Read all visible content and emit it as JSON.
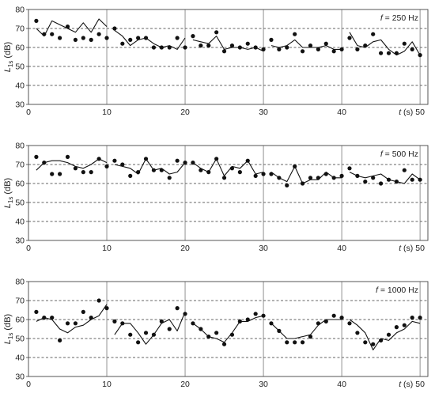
{
  "chart_data": [
    {
      "type": "line",
      "title": "f = 250 Hz",
      "title_prefix": "f",
      "title_suffix": " = 250 Hz",
      "ylabel": "L1s (dB)",
      "ylabel_main": "L",
      "ylabel_sub": "1s",
      "ylabel_unit": " (dB)",
      "xlabel": "t (s)",
      "x_ticks": [
        "0",
        "10",
        "20",
        "30",
        "40",
        "50"
      ],
      "y_ticks": [
        "30",
        "40",
        "50",
        "60",
        "70",
        "80"
      ],
      "xlim": [
        0,
        51
      ],
      "ylim": [
        30,
        80
      ],
      "grid": {
        "horizontal": "dashed",
        "vertical": "solid at 10, 20, 30, 40, 50"
      },
      "series": [
        {
          "kind": "measured points",
          "x": [
            1,
            2,
            3,
            4,
            5,
            6,
            7,
            8,
            9,
            10,
            11,
            12,
            13,
            14,
            15,
            16,
            17,
            18,
            19,
            20,
            21,
            22,
            23,
            24,
            25,
            26,
            27,
            28,
            29,
            30,
            31,
            32,
            33,
            34,
            35,
            36,
            37,
            38,
            39,
            40,
            41,
            42,
            43,
            44,
            45,
            46,
            47,
            48,
            49,
            50
          ],
          "y": [
            74,
            67,
            67,
            65,
            71,
            64,
            65,
            64,
            67,
            65,
            70,
            62,
            64,
            65,
            65,
            60,
            60,
            60,
            65,
            60,
            66,
            61,
            61,
            68,
            58,
            61,
            60,
            62,
            60,
            59,
            64,
            59,
            60,
            67,
            58,
            61,
            59,
            62,
            58,
            59,
            65,
            59,
            61,
            67,
            57,
            57,
            57,
            62,
            59,
            56
          ]
        },
        {
          "kind": "model line",
          "segments": [
            {
              "x": [
                1,
                2,
                3,
                4,
                5,
                6,
                7,
                8,
                9,
                10
              ],
              "y": [
                70,
                66,
                74,
                72,
                70,
                68,
                73,
                68,
                75,
                71
              ]
            },
            {
              "x": [
                11,
                12,
                13,
                14,
                15,
                16,
                17,
                18,
                19,
                20
              ],
              "y": [
                69,
                66,
                61,
                64,
                65,
                62,
                60,
                61,
                59,
                65
              ]
            },
            {
              "x": [
                21,
                22,
                23,
                24,
                25,
                26,
                27,
                28,
                29,
                30
              ],
              "y": [
                64,
                63,
                62,
                66,
                59,
                60,
                60,
                59,
                60,
                58
              ]
            },
            {
              "x": [
                31,
                32,
                33,
                34,
                35,
                36,
                37,
                38,
                39,
                40
              ],
              "y": [
                61,
                60,
                61,
                64,
                60,
                60,
                60,
                61,
                59,
                59
              ]
            },
            {
              "x": [
                41,
                42,
                43,
                44,
                45,
                46,
                47,
                48,
                49,
                50
              ],
              "y": [
                68,
                61,
                60,
                63,
                64,
                59,
                56,
                58,
                63,
                56
              ]
            }
          ]
        }
      ]
    },
    {
      "type": "line",
      "title": "f = 500 Hz",
      "title_prefix": "f",
      "title_suffix": " = 500 Hz",
      "ylabel": "L1s (dB)",
      "ylabel_main": "L",
      "ylabel_sub": "1s",
      "ylabel_unit": " (dB)",
      "xlabel": "t (s)",
      "x_ticks": [
        "0",
        "10",
        "20",
        "30",
        "40",
        "50"
      ],
      "y_ticks": [
        "30",
        "40",
        "50",
        "60",
        "70",
        "80"
      ],
      "xlim": [
        0,
        51
      ],
      "ylim": [
        30,
        80
      ],
      "grid": {
        "horizontal": "dashed",
        "vertical": "solid at 10, 20, 30, 40, 50"
      },
      "series": [
        {
          "kind": "measured points",
          "x": [
            1,
            2,
            3,
            4,
            5,
            6,
            7,
            8,
            9,
            10,
            11,
            12,
            13,
            14,
            15,
            16,
            17,
            18,
            19,
            20,
            21,
            22,
            23,
            24,
            25,
            26,
            27,
            28,
            29,
            30,
            31,
            32,
            33,
            34,
            35,
            36,
            37,
            38,
            39,
            40,
            41,
            42,
            43,
            44,
            45,
            46,
            47,
            48,
            49,
            50
          ],
          "y": [
            74,
            71,
            65,
            65,
            74,
            68,
            66,
            66,
            73,
            69,
            72,
            70,
            64,
            66,
            73,
            67,
            67,
            63,
            72,
            71,
            71,
            67,
            66,
            73,
            63,
            68,
            66,
            72,
            64,
            65,
            65,
            63,
            59,
            69,
            60,
            63,
            63,
            65,
            63,
            64,
            68,
            64,
            61,
            63,
            60,
            62,
            61,
            67,
            62,
            62
          ]
        },
        {
          "kind": "model line",
          "segments": [
            {
              "x": [
                1,
                2,
                3,
                4,
                5,
                6,
                7,
                8,
                9,
                10
              ],
              "y": [
                67,
                71,
                72,
                72,
                71,
                69,
                68,
                70,
                73,
                71
              ]
            },
            {
              "x": [
                11,
                12,
                13,
                14,
                15,
                16,
                17,
                18,
                19,
                20
              ],
              "y": [
                70,
                69,
                68,
                65,
                73,
                67,
                68,
                65,
                66,
                71
              ]
            },
            {
              "x": [
                21,
                22,
                23,
                24,
                25,
                26,
                27,
                28,
                29,
                30
              ],
              "y": [
                71,
                68,
                66,
                73,
                64,
                69,
                68,
                72,
                65,
                66
              ]
            },
            {
              "x": [
                31,
                32,
                33,
                34,
                35,
                36,
                37,
                38,
                39,
                40
              ],
              "y": [
                66,
                63,
                61,
                69,
                60,
                62,
                62,
                66,
                63,
                63
              ]
            },
            {
              "x": [
                41,
                42,
                43,
                44,
                45,
                46,
                47,
                48,
                49,
                50
              ],
              "y": [
                66,
                64,
                63,
                64,
                65,
                62,
                61,
                60,
                65,
                62
              ]
            }
          ]
        }
      ]
    },
    {
      "type": "line",
      "title": "f = 1000 Hz",
      "title_prefix": "f",
      "title_suffix": " = 1000 Hz",
      "ylabel": "L1s (dB)",
      "ylabel_main": "L",
      "ylabel_sub": "1s",
      "ylabel_unit": " (dB)",
      "xlabel": "t (s)",
      "x_ticks": [
        "0",
        "10",
        "20",
        "30",
        "40",
        "50"
      ],
      "y_ticks": [
        "30",
        "40",
        "50",
        "60",
        "70",
        "80"
      ],
      "xlim": [
        0,
        51
      ],
      "ylim": [
        30,
        80
      ],
      "grid": {
        "horizontal": "dashed",
        "vertical": "solid at 10, 20, 30, 40, 50"
      },
      "series": [
        {
          "kind": "measured points",
          "x": [
            1,
            2,
            3,
            4,
            5,
            6,
            7,
            8,
            9,
            10,
            11,
            12,
            13,
            14,
            15,
            16,
            17,
            18,
            19,
            20,
            21,
            22,
            23,
            24,
            25,
            26,
            27,
            28,
            29,
            30,
            31,
            32,
            33,
            34,
            35,
            36,
            37,
            38,
            39,
            40,
            41,
            42,
            43,
            44,
            45,
            46,
            47,
            48,
            49,
            50
          ],
          "y": [
            64,
            61,
            61,
            49,
            58,
            58,
            64,
            61,
            70,
            66,
            59,
            58,
            52,
            48,
            53,
            52,
            59,
            55,
            66,
            63,
            58,
            55,
            51,
            53,
            47,
            52,
            59,
            60,
            63,
            62,
            58,
            54,
            48,
            48,
            48,
            51,
            58,
            59,
            62,
            61,
            58,
            53,
            48,
            47,
            49,
            52,
            56,
            57,
            61,
            61
          ]
        },
        {
          "kind": "model line",
          "segments": [
            {
              "x": [
                1,
                2,
                3,
                4,
                5,
                6,
                7,
                8,
                9,
                10
              ],
              "y": [
                59,
                61,
                60,
                55,
                53,
                56,
                57,
                60,
                62,
                68
              ]
            },
            {
              "x": [
                11,
                12,
                13,
                14,
                15,
                16,
                17,
                18,
                19,
                20
              ],
              "y": [
                52,
                58,
                58,
                53,
                47,
                52,
                58,
                60,
                54,
                64
              ]
            },
            {
              "x": [
                21,
                22,
                23,
                24,
                25,
                26,
                27,
                28,
                29,
                30
              ],
              "y": [
                58,
                55,
                51,
                50,
                48,
                53,
                59,
                59,
                61,
                62
              ]
            },
            {
              "x": [
                31,
                32,
                33,
                34,
                35,
                36,
                37,
                38,
                39,
                40
              ],
              "y": [
                58,
                54,
                50,
                50,
                51,
                52,
                57,
                60,
                60,
                60
              ]
            },
            {
              "x": [
                41,
                42,
                43,
                44,
                45,
                46,
                47,
                48,
                49,
                50
              ],
              "y": [
                60,
                57,
                53,
                44,
                50,
                49,
                53,
                55,
                59,
                58
              ]
            }
          ]
        }
      ]
    }
  ]
}
